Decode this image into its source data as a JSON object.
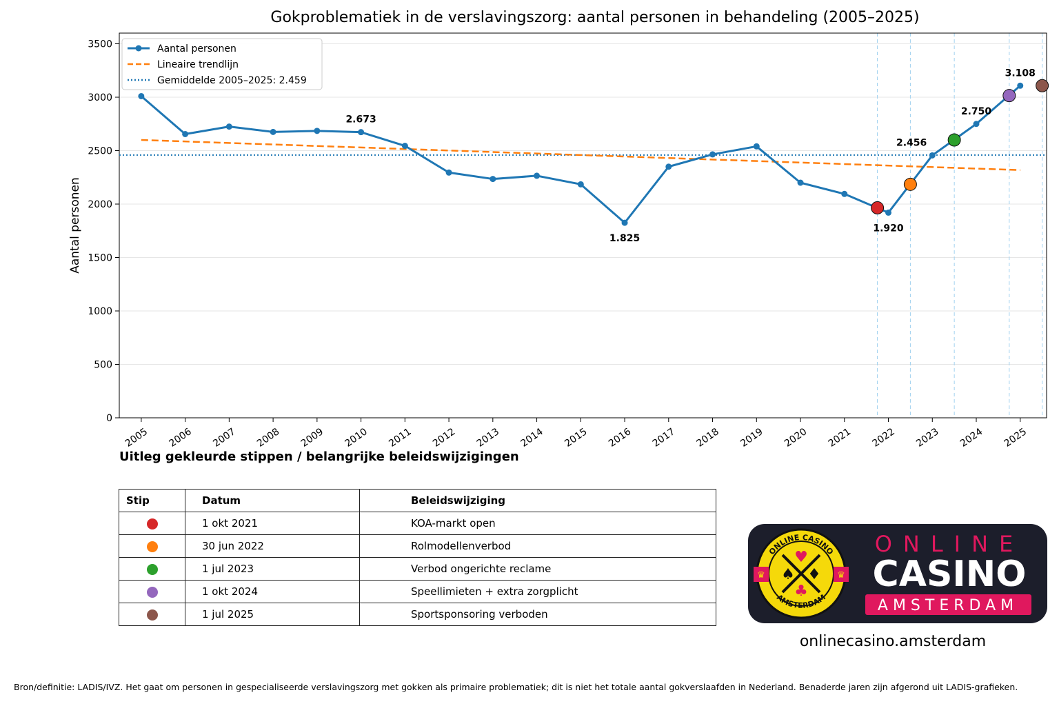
{
  "chart_data": {
    "type": "line",
    "title": "Gokproblematiek in de verslavingszorg: aantal personen in behandeling (2005–2025)",
    "xlabel": "",
    "ylabel": "Aantal personen",
    "xlim": [
      2004.5,
      2025.6
    ],
    "ylim": [
      0,
      3600
    ],
    "yticks": [
      "0",
      "500",
      "1000",
      "1500",
      "2000",
      "2500",
      "3000",
      "3500"
    ],
    "ytick_values": [
      0,
      500,
      1000,
      1500,
      2000,
      2500,
      3000,
      3500
    ],
    "xticks": [
      "2005",
      "2006",
      "2007",
      "2008",
      "2009",
      "2010",
      "2011",
      "2012",
      "2013",
      "2014",
      "2015",
      "2016",
      "2017",
      "2018",
      "2019",
      "2020",
      "2021",
      "2022",
      "2023",
      "2024",
      "2025"
    ],
    "grid": "horizontal",
    "legend_placement": "top-left",
    "series": [
      {
        "name": "Aantal personen",
        "color": "#1f77b4",
        "x": [
          2005,
          2006,
          2007,
          2008,
          2009,
          2010,
          2011,
          2012,
          2013,
          2014,
          2015,
          2016,
          2017,
          2018,
          2019,
          2020,
          2021,
          2022,
          2023,
          2024,
          2025
        ],
        "values": [
          3010,
          2655,
          2725,
          2675,
          2685,
          2673,
          2545,
          2295,
          2235,
          2265,
          2185,
          1825,
          2350,
          2465,
          2540,
          2200,
          2095,
          1920,
          2456,
          2750,
          3108
        ]
      },
      {
        "name": "Lineaire trendlijn",
        "color": "#ff7f0e",
        "style": "dashed",
        "x": [
          2005,
          2025
        ],
        "values": [
          2600,
          2318
        ]
      },
      {
        "name": "Gemiddelde 2005–2025: 2.459",
        "color": "#1f77b4",
        "style": "dotted",
        "value": 2459
      }
    ],
    "annotations": [
      {
        "x": 2010,
        "y": 2673,
        "text": "2.673",
        "position": "above"
      },
      {
        "x": 2016,
        "y": 1825,
        "text": "1.825",
        "position": "below"
      },
      {
        "x": 2022,
        "y": 1920,
        "text": "1.920",
        "position": "below"
      },
      {
        "x": 2023,
        "y": 2456,
        "text": "2.456",
        "position": "left"
      },
      {
        "x": 2024,
        "y": 2750,
        "text": "2.750",
        "position": "above"
      },
      {
        "x": 2025,
        "y": 3108,
        "text": "3.108",
        "position": "above"
      }
    ],
    "policy_markers": [
      {
        "x": 2021.75,
        "y": 1965,
        "color": "#d62728"
      },
      {
        "x": 2022.5,
        "y": 2185,
        "color": "#ff7f0e"
      },
      {
        "x": 2023.5,
        "y": 2600,
        "color": "#2ca02c"
      },
      {
        "x": 2024.75,
        "y": 3015,
        "color": "#9467bd"
      },
      {
        "x": 2025.5,
        "y": 3108,
        "color": "#8c564b"
      }
    ]
  },
  "legend_section": {
    "title": "Uitleg gekleurde stippen / belangrijke beleidswijzigingen",
    "headers": {
      "stip": "Stip",
      "datum": "Datum",
      "beleid": "Beleidswijziging"
    },
    "rows": [
      {
        "color": "#d62728",
        "datum": "1 okt 2021",
        "beleid": "KOA-markt open"
      },
      {
        "color": "#ff7f0e",
        "datum": "30 jun 2022",
        "beleid": "Rolmodellenverbod"
      },
      {
        "color": "#2ca02c",
        "datum": "1 jul 2023",
        "beleid": "Verbod ongerichte reclame"
      },
      {
        "color": "#9467bd",
        "datum": "1 okt 2024",
        "beleid": "Speellimieten + extra zorgplicht"
      },
      {
        "color": "#8c564b",
        "datum": "1 jul 2025",
        "beleid": "Sportsponsoring verboden"
      }
    ]
  },
  "logo": {
    "line1": "ONLINE",
    "line2": "CASINO",
    "line3": "AMSTERDAM",
    "badge_top": "ONLINE CASINO",
    "badge_bottom": "AMSTERDAM",
    "url": "onlinecasino.amsterdam"
  },
  "footnote": "Bron/definitie: LADIS/IVZ. Het gaat om personen in gespecialiseerde verslavingszorg met gokken als primaire problematiek; dit is niet het totale aantal gokverslaafden in Nederland. Benaderde jaren zijn afgerond uit LADIS-grafieken."
}
